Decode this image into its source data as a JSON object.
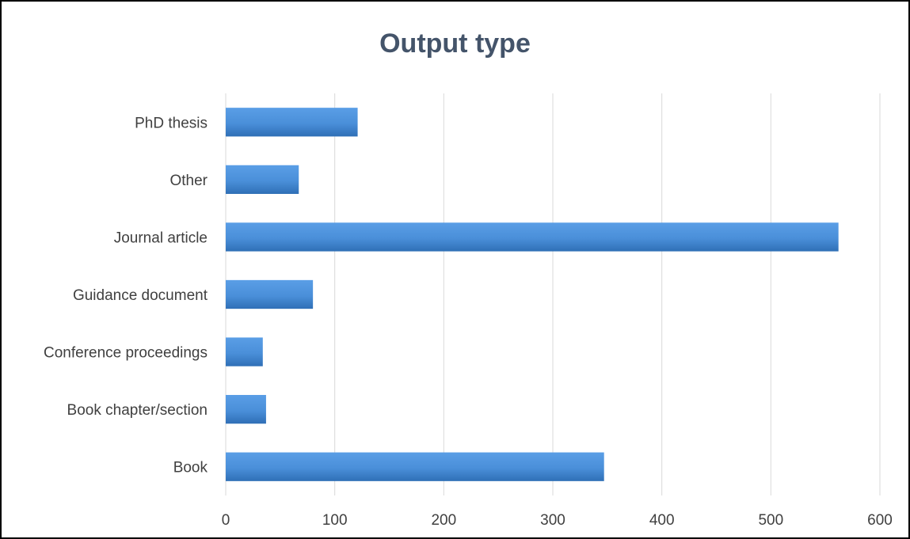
{
  "chart_data": {
    "type": "bar",
    "orientation": "horizontal",
    "title": "Output type",
    "xlabel": "",
    "ylabel": "",
    "categories": [
      "PhD thesis",
      "Other",
      "Journal article",
      "Guidance document",
      "Conference proceedings",
      "Book chapter/section",
      "Book"
    ],
    "values": [
      121,
      67,
      562,
      80,
      34,
      37,
      347
    ],
    "xlim": [
      0,
      600
    ],
    "xticks": [
      "0",
      "100",
      "200",
      "300",
      "400",
      "500",
      "600"
    ],
    "grid": "vertical",
    "legend": "none",
    "colors": {
      "bar": "#4a8fd9",
      "bar_dark": "#2f6fb6",
      "grid": "#d9d9d9",
      "title": "#44546a",
      "text": "#404040"
    }
  }
}
